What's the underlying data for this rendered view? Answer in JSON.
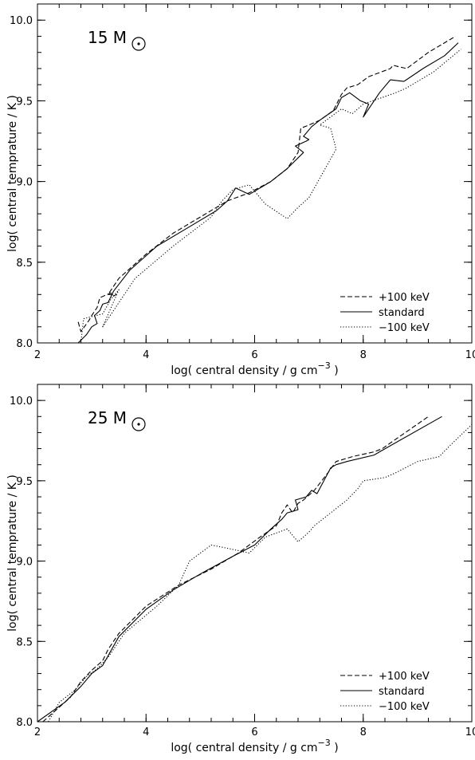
{
  "chart_data": [
    {
      "type": "line",
      "annotation": {
        "mass_value": "15",
        "mass_unit": "M",
        "symbol": "sun-symbol"
      },
      "xlabel": {
        "main": "log( central density / g cm",
        "sup": "−3",
        "close": " )"
      },
      "ylabel": "log( central temprature / K )",
      "xlim": [
        2,
        10
      ],
      "ylim": [
        8.0,
        10.1
      ],
      "xticks": [
        "2",
        "4",
        "6",
        "8",
        "10"
      ],
      "yticks": [
        "8.0",
        "8.5",
        "9.0",
        "9.5",
        "10.0"
      ],
      "legend_position": "bottom-right",
      "series": [
        {
          "name": "+100 keV",
          "style": "dashed",
          "x": [
            2.75,
            2.8,
            2.95,
            3.0,
            3.1,
            3.15,
            3.35,
            3.4,
            3.45,
            3.3,
            3.5,
            4.0,
            4.5,
            5.0,
            5.5,
            5.9,
            6.3,
            6.6,
            6.8,
            6.85,
            7.0,
            7.2,
            7.45,
            7.6,
            7.7,
            7.9,
            8.1,
            8.5,
            8.55,
            8.8,
            9.2,
            9.7
          ],
          "y": [
            8.13,
            8.07,
            8.14,
            8.17,
            8.22,
            8.28,
            8.31,
            8.29,
            8.3,
            8.3,
            8.4,
            8.55,
            8.68,
            8.78,
            8.88,
            8.93,
            9.0,
            9.08,
            9.18,
            9.33,
            9.35,
            9.38,
            9.44,
            9.54,
            9.58,
            9.6,
            9.65,
            9.7,
            9.72,
            9.7,
            9.8,
            9.9
          ]
        },
        {
          "name": "standard",
          "style": "solid",
          "x": [
            2.3,
            2.75,
            2.9,
            3.0,
            3.1,
            3.05,
            3.15,
            3.2,
            3.3,
            3.4,
            3.7,
            4.2,
            4.8,
            5.3,
            5.5,
            5.65,
            5.9,
            6.3,
            6.6,
            6.9,
            6.75,
            6.95,
            7.0,
            6.9,
            7.05,
            7.2,
            7.5,
            7.6,
            7.75,
            7.95,
            8.1,
            8.0,
            8.3,
            8.5,
            8.75,
            9.1,
            9.5,
            9.75
          ],
          "y": [
            8.0,
            8.0,
            8.05,
            8.1,
            8.12,
            8.17,
            8.2,
            8.24,
            8.25,
            8.32,
            8.45,
            8.6,
            8.72,
            8.82,
            8.88,
            8.96,
            8.92,
            9.0,
            9.08,
            9.18,
            9.22,
            9.25,
            9.26,
            9.28,
            9.34,
            9.38,
            9.45,
            9.52,
            9.55,
            9.5,
            9.48,
            9.4,
            9.55,
            9.63,
            9.62,
            9.7,
            9.78,
            9.86
          ]
        },
        {
          "name": "−100 keV",
          "style": "dotted",
          "x": [
            2.8,
            2.85,
            3.2,
            3.35,
            3.5,
            3.2,
            3.4,
            3.8,
            4.5,
            5.2,
            5.4,
            5.6,
            5.9,
            6.2,
            6.6,
            6.8,
            7.0,
            7.5,
            7.4,
            7.2,
            7.6,
            7.8,
            8.0,
            8.6,
            8.8,
            9.3,
            9.8
          ],
          "y": [
            8.0,
            8.15,
            8.18,
            8.27,
            8.33,
            8.1,
            8.2,
            8.4,
            8.6,
            8.78,
            8.88,
            8.95,
            8.98,
            8.86,
            8.77,
            8.84,
            8.9,
            9.2,
            9.33,
            9.35,
            9.45,
            9.42,
            9.48,
            9.55,
            9.58,
            9.68,
            9.82
          ]
        }
      ]
    },
    {
      "type": "line",
      "annotation": {
        "mass_value": "25",
        "mass_unit": "M",
        "symbol": "sun-symbol"
      },
      "xlabel": {
        "main": "log( central density / g cm",
        "sup": "−3",
        "close": " )"
      },
      "ylabel": "log( central temprature / K )",
      "xlim": [
        2,
        10
      ],
      "ylim": [
        8.0,
        10.1
      ],
      "xticks": [
        "2",
        "4",
        "6",
        "8",
        "10"
      ],
      "yticks": [
        "8.0",
        "8.5",
        "9.0",
        "9.5",
        "10.0"
      ],
      "legend_position": "bottom-right",
      "series": [
        {
          "name": "+100 keV",
          "style": "dashed",
          "x": [
            2.1,
            2.6,
            2.8,
            3.0,
            3.2,
            3.3,
            3.5,
            4.0,
            4.6,
            5.2,
            5.7,
            6.1,
            6.4,
            6.5,
            6.6,
            6.7,
            6.8,
            6.9,
            7.1,
            7.35,
            7.5,
            7.6,
            7.8,
            8.2,
            8.35,
            9.2
          ],
          "y": [
            8.0,
            8.15,
            8.25,
            8.32,
            8.38,
            8.45,
            8.55,
            8.72,
            8.85,
            8.95,
            9.05,
            9.15,
            9.22,
            9.3,
            9.35,
            9.3,
            9.36,
            9.38,
            9.44,
            9.55,
            9.62,
            9.63,
            9.65,
            9.68,
            9.7,
            9.9
          ]
        },
        {
          "name": "standard",
          "style": "solid",
          "x": [
            2.0,
            2.5,
            2.8,
            3.0,
            3.2,
            3.5,
            4.0,
            4.5,
            5.0,
            5.6,
            6.0,
            6.3,
            6.5,
            6.6,
            6.8,
            6.75,
            6.95,
            7.05,
            7.15,
            7.4,
            7.5,
            7.7,
            8.2,
            8.3,
            9.45
          ],
          "y": [
            8.0,
            8.12,
            8.22,
            8.3,
            8.35,
            8.53,
            8.7,
            8.82,
            8.92,
            9.03,
            9.1,
            9.2,
            9.26,
            9.3,
            9.32,
            9.38,
            9.4,
            9.44,
            9.42,
            9.58,
            9.6,
            9.62,
            9.66,
            9.68,
            9.9
          ]
        },
        {
          "name": "−100 keV",
          "style": "dotted",
          "x": [
            2.2,
            2.4,
            2.7,
            2.9,
            3.1,
            3.3,
            3.6,
            4.2,
            4.6,
            4.8,
            5.2,
            5.5,
            5.9,
            6.2,
            6.6,
            6.8,
            7.0,
            7.1,
            7.4,
            7.7,
            7.9,
            8.0,
            8.4,
            8.6,
            9.0,
            9.4,
            9.6,
            10.0
          ],
          "y": [
            8.0,
            8.12,
            8.2,
            8.28,
            8.33,
            8.4,
            8.55,
            8.72,
            8.85,
            9.0,
            9.1,
            9.08,
            9.05,
            9.15,
            9.2,
            9.12,
            9.18,
            9.22,
            9.3,
            9.38,
            9.45,
            9.5,
            9.52,
            9.55,
            9.62,
            9.65,
            9.72,
            9.85
          ]
        }
      ]
    }
  ]
}
